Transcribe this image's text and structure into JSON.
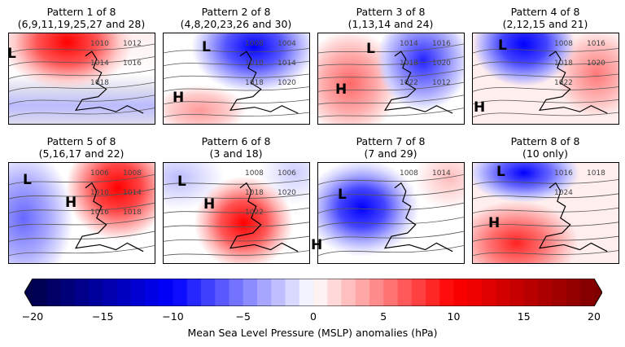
{
  "panels": [
    {
      "title": "Pattern 1 of 8",
      "subtitle": "(6,9,11,19,25,27 and 28)",
      "markers": [
        "L"
      ],
      "contour_labels": [
        "1010",
        "1012",
        "1014",
        "1016",
        "1018"
      ]
    },
    {
      "title": "Pattern 2 of 8",
      "subtitle": "(4,8,20,23,26 and 30)",
      "markers": [
        "L",
        "H"
      ],
      "contour_labels": [
        "1008",
        "1004",
        "1010",
        "1014",
        "1018",
        "1020"
      ]
    },
    {
      "title": "Pattern 3 of 8",
      "subtitle": "(1,13,14 and 24)",
      "markers": [
        "L",
        "H"
      ],
      "contour_labels": [
        "1014",
        "1016",
        "1018",
        "1020",
        "1022",
        "1012"
      ]
    },
    {
      "title": "Pattern 4 of 8",
      "subtitle": "(2,12,15 and 21)",
      "markers": [
        "L",
        "H"
      ],
      "contour_labels": [
        "1008",
        "1016",
        "1018",
        "1020",
        "1022"
      ]
    },
    {
      "title": "Pattern 5 of 8",
      "subtitle": "(5,16,17 and 22)",
      "markers": [
        "L",
        "H"
      ],
      "contour_labels": [
        "1006",
        "1008",
        "1010",
        "1014",
        "1016",
        "1018"
      ]
    },
    {
      "title": "Pattern 6 of 8",
      "subtitle": "(3 and 18)",
      "markers": [
        "L",
        "H"
      ],
      "contour_labels": [
        "1008",
        "1006",
        "1018",
        "1020",
        "1022"
      ]
    },
    {
      "title": "Pattern 7 of 8",
      "subtitle": "(7 and 29)",
      "markers": [
        "L",
        "H"
      ],
      "contour_labels": [
        "1008",
        "1014"
      ]
    },
    {
      "title": "Pattern 8 of 8",
      "subtitle": "(10 only)",
      "markers": [
        "L",
        "H"
      ],
      "contour_labels": [
        "1016",
        "1018",
        "1024"
      ]
    }
  ],
  "colorbar": {
    "label": "Mean Sea Level Pressure (MSLP) anomalies (hPa)",
    "ticks": [
      "−20",
      "−15",
      "−10",
      "−5",
      "0",
      "5",
      "10",
      "15",
      "20"
    ],
    "range": [
      -20,
      20
    ],
    "step": 1,
    "extend": "both",
    "colormap": "seismic",
    "colors": {
      "min": "#00004c",
      "mid_low": "#0000ff",
      "zero": "#ffffff",
      "mid_high": "#ff0000",
      "max": "#800000"
    }
  }
}
